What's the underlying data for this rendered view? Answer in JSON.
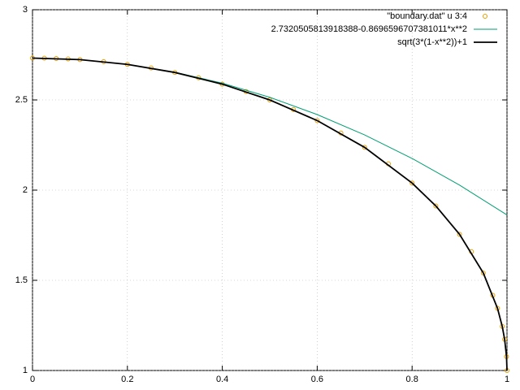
{
  "chart_data": {
    "type": "line",
    "xlim": [
      0,
      1
    ],
    "ylim": [
      1,
      3
    ],
    "xticks": [
      0,
      0.2,
      0.4,
      0.6,
      0.8,
      1
    ],
    "yticks": [
      1,
      1.5,
      2,
      2.5,
      3
    ],
    "grid": true,
    "legend": "top-right",
    "series": [
      {
        "name": "\"boundary.dat\" u 3:4",
        "color": "#e69f00",
        "style": "points",
        "x": [
          0,
          0.025,
          0.05,
          0.075,
          0.1,
          0.15,
          0.2,
          0.25,
          0.3,
          0.35,
          0.4,
          0.45,
          0.5,
          0.55,
          0.6,
          0.65,
          0.7,
          0.75,
          0.8,
          0.85,
          0.9,
          0.925,
          0.95,
          0.97,
          0.98,
          0.99,
          0.995,
          0.999,
          1
        ],
        "values": [
          2.7321,
          2.7315,
          2.7299,
          2.7272,
          2.7234,
          2.7125,
          2.6971,
          2.6771,
          2.6523,
          2.6225,
          2.5875,
          2.5469,
          2.5,
          2.4465,
          2.3856,
          2.3162,
          2.2369,
          2.1456,
          2.0392,
          1.9124,
          1.755,
          1.6588,
          1.5408,
          1.4166,
          1.3447,
          1.2443,
          1.173,
          1.0774,
          1
        ]
      },
      {
        "name": "2.7320505813918388-0.8696596707381011*x**2",
        "color": "#009e73",
        "style": "line",
        "x": [
          0,
          0.1,
          0.2,
          0.3,
          0.4,
          0.5,
          0.6,
          0.7,
          0.8,
          0.9,
          1
        ],
        "values": [
          2.7321,
          2.7234,
          2.6973,
          2.6538,
          2.5929,
          2.5147,
          2.419,
          2.3059,
          2.1755,
          2.0277,
          1.8624
        ]
      },
      {
        "name": "sqrt(3*(1-x**2))+1",
        "color": "#000000",
        "style": "line",
        "x": [
          0,
          0.1,
          0.2,
          0.3,
          0.4,
          0.5,
          0.6,
          0.7,
          0.8,
          0.85,
          0.9,
          0.95,
          0.98,
          0.99,
          0.995,
          0.999,
          1
        ],
        "values": [
          2.7321,
          2.7234,
          2.6971,
          2.6523,
          2.5875,
          2.5,
          2.3856,
          2.2369,
          2.0392,
          1.9124,
          1.755,
          1.5408,
          1.3447,
          1.2443,
          1.173,
          1.0774,
          1
        ]
      }
    ]
  }
}
